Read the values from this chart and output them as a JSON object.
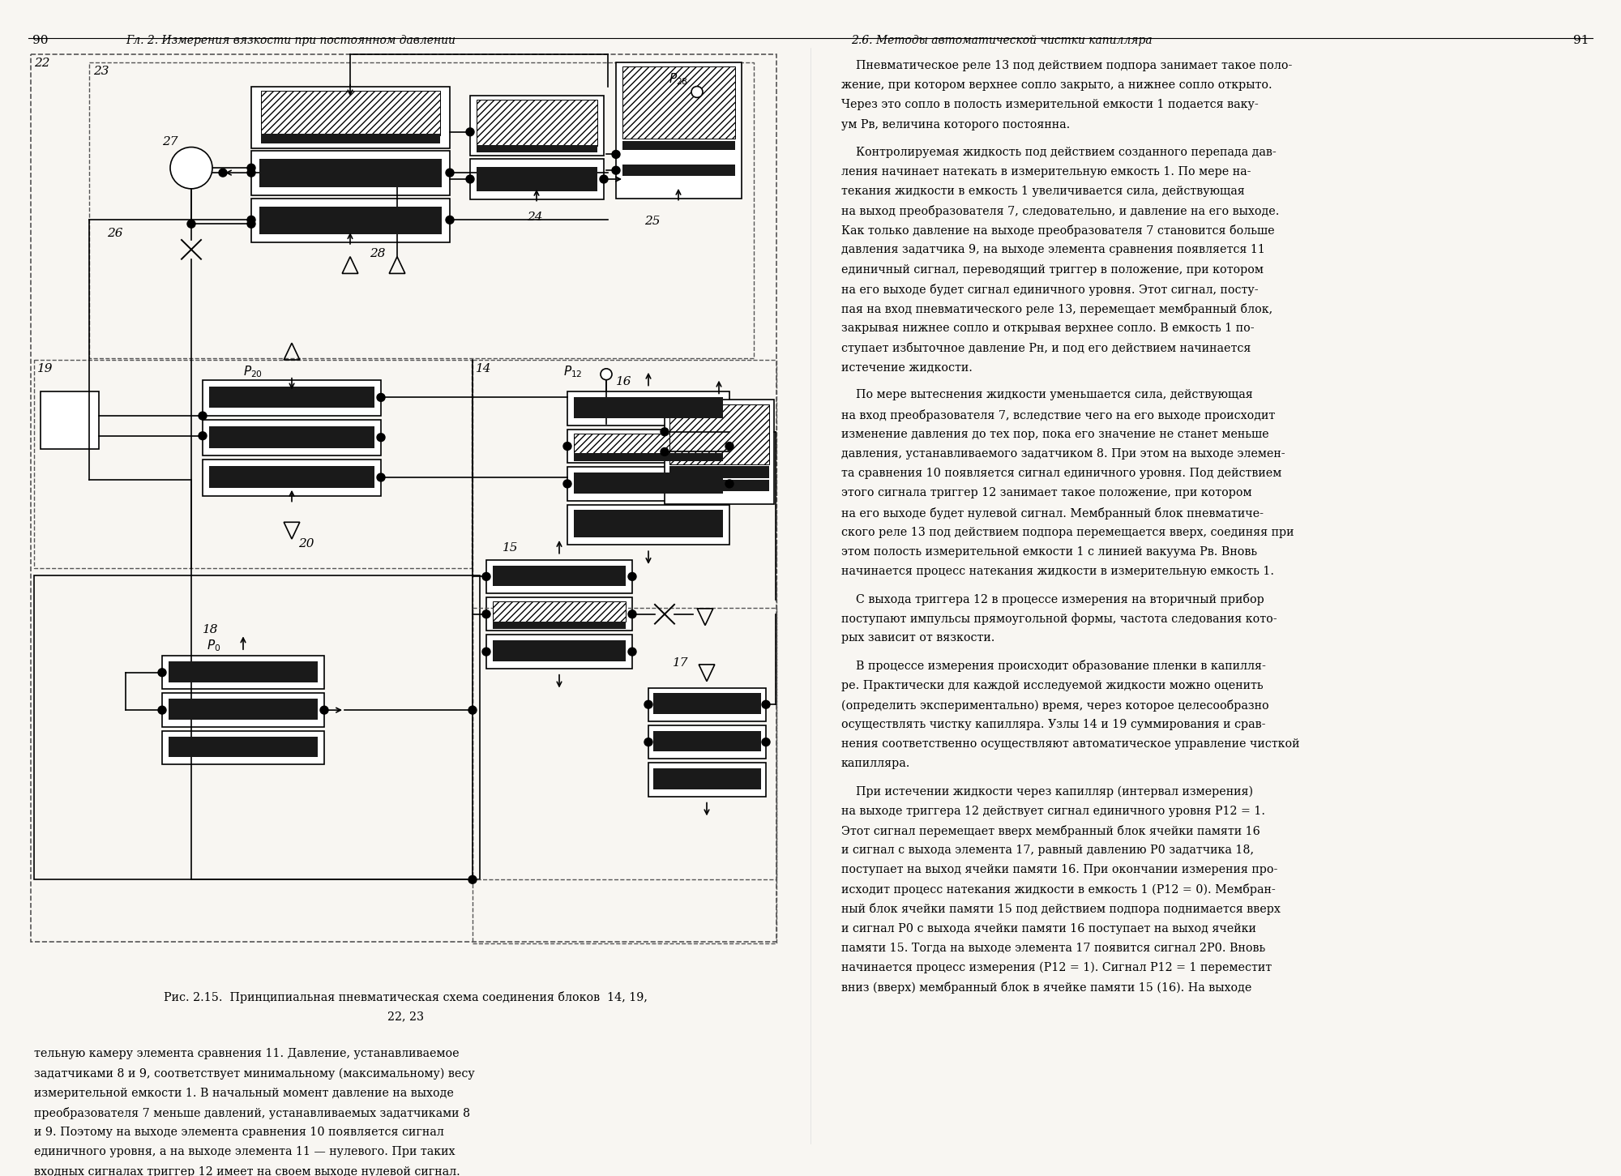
{
  "page_width": 20.0,
  "page_height": 14.51,
  "dpi": 100,
  "bg_color": "#f8f6f2",
  "left_page_num": "90",
  "right_page_num": "91",
  "left_header": "Гл. 2. Измерения вязкости при постоянном давлении",
  "right_header": "2.6. Методы автоматической чистки капилляра",
  "fig_caption_line1": "Рис. 2.15.  Принципиальная пневматическая схема соединения блоков  14, 19,",
  "fig_caption_line2": "22, 23",
  "left_body_lines": [
    "тельную камеру элемента сравнения 11. Давление, устанавливаемое",
    "задатчиками 8 и 9, соответствует минимальному (максимальному) весу",
    "измерительной емкости 1. В начальный момент давление на выходе",
    "преобразователя 7 меньше давлений, устанавливаемых задатчиками 8",
    "и 9. Поэтому на выходе элемента сравнения 10 появляется сигнал",
    "единичного уровня, а на выходе элемента 11 — нулевого. При таких",
    "входных сигналах триггер 12 имеет на своем выходе нулевой сигнал."
  ],
  "right_body_paras": [
    [
      "    Пневматическое реле 13 под действием подпора занимает такое поло-",
      "жение, при котором верхнее сопло закрыто, а нижнее сопло открыто.",
      "Через это сопло в полость измерительной емкости 1 подается ваку-",
      "ум Рв, величина которого постоянна."
    ],
    [
      "    Контролируемая жидкость под действием созданного перепада дав-",
      "ления начинает натекать в измерительную емкость 1. По мере на-",
      "текания жидкости в емкость 1 увеличивается сила, действующая",
      "на выход преобразователя 7, следовательно, и давление на его выходе.",
      "Как только давление на выходе преобразователя 7 становится больше",
      "давления задатчика 9, на выходе элемента сравнения появляется 11",
      "единичный сигнал, переводящий триггер в положение, при котором",
      "на его выходе будет сигнал единичного уровня. Этот сигнал, посту-",
      "пая на вход пневматического реле 13, перемещает мембранный блок,",
      "закрывая нижнее сопло и открывая верхнее сопло. В емкость 1 по-",
      "ступает избыточное давление Рн, и под его действием начинается",
      "истечение жидкости."
    ],
    [
      "    По мере вытеснения жидкости уменьшается сила, действующая",
      "на вход преобразователя 7, вследствие чего на его выходе происходит",
      "изменение давления до тех пор, пока его значение не станет меньше",
      "давления, устанавливаемого задатчиком 8. При этом на выходе элемен-",
      "та сравнения 10 появляется сигнал единичного уровня. Под действием",
      "этого сигнала триггер 12 занимает такое положение, при котором",
      "на его выходе будет нулевой сигнал. Мембранный блок пневматиче-",
      "ского реле 13 под действием подпора перемещается вверх, соединяя при",
      "этом полость измерительной емкости 1 с линией вакуума Рв. Вновь",
      "начинается процесс натекания жидкости в измерительную емкость 1."
    ],
    [
      "    С выхода триггера 12 в процессе измерения на вторичный прибор",
      "поступают импульсы прямоугольной формы, частота следования кото-",
      "рых зависит от вязкости."
    ],
    [
      "    В процессе измерения происходит образование пленки в капилля-",
      "ре. Практически для каждой исследуемой жидкости можно оценить",
      "(определить экспериментально) время, через которое целесообразно",
      "осуществлять чистку капилляра. Узлы 14 и 19 суммирования и срав-",
      "нения соответственно осуществляют автоматическое управление чисткой",
      "капилляра."
    ],
    [
      "    При истечении жидкости через капилляр (интервал измерения)",
      "на выходе триггера 12 действует сигнал единичного уровня P12 = 1.",
      "Этот сигнал перемещает вверх мембранный блок ячейки памяти 16",
      "и сигнал с выхода элемента 17, равный давлению P0 задатчика 18,",
      "поступает на выход ячейки памяти 16. При окончании измерения про-",
      "исходит процесс натекания жидкости в емкость 1 (P12 = 0). Мембран-",
      "ный блок ячейки памяти 15 под действием подпора поднимается вверх",
      "и сигнал P0 с выхода ячейки памяти 16 поступает на выход ячейки",
      "памяти 15. Тогда на выходе элемента 17 появится сигнал 2P0. Вновь",
      "начинается процесс измерения (P12 = 1). Сигнал P12 = 1 переместит",
      "вниз (вверх) мембранный блок в ячейке памяти 15 (16). На выходе"
    ]
  ]
}
